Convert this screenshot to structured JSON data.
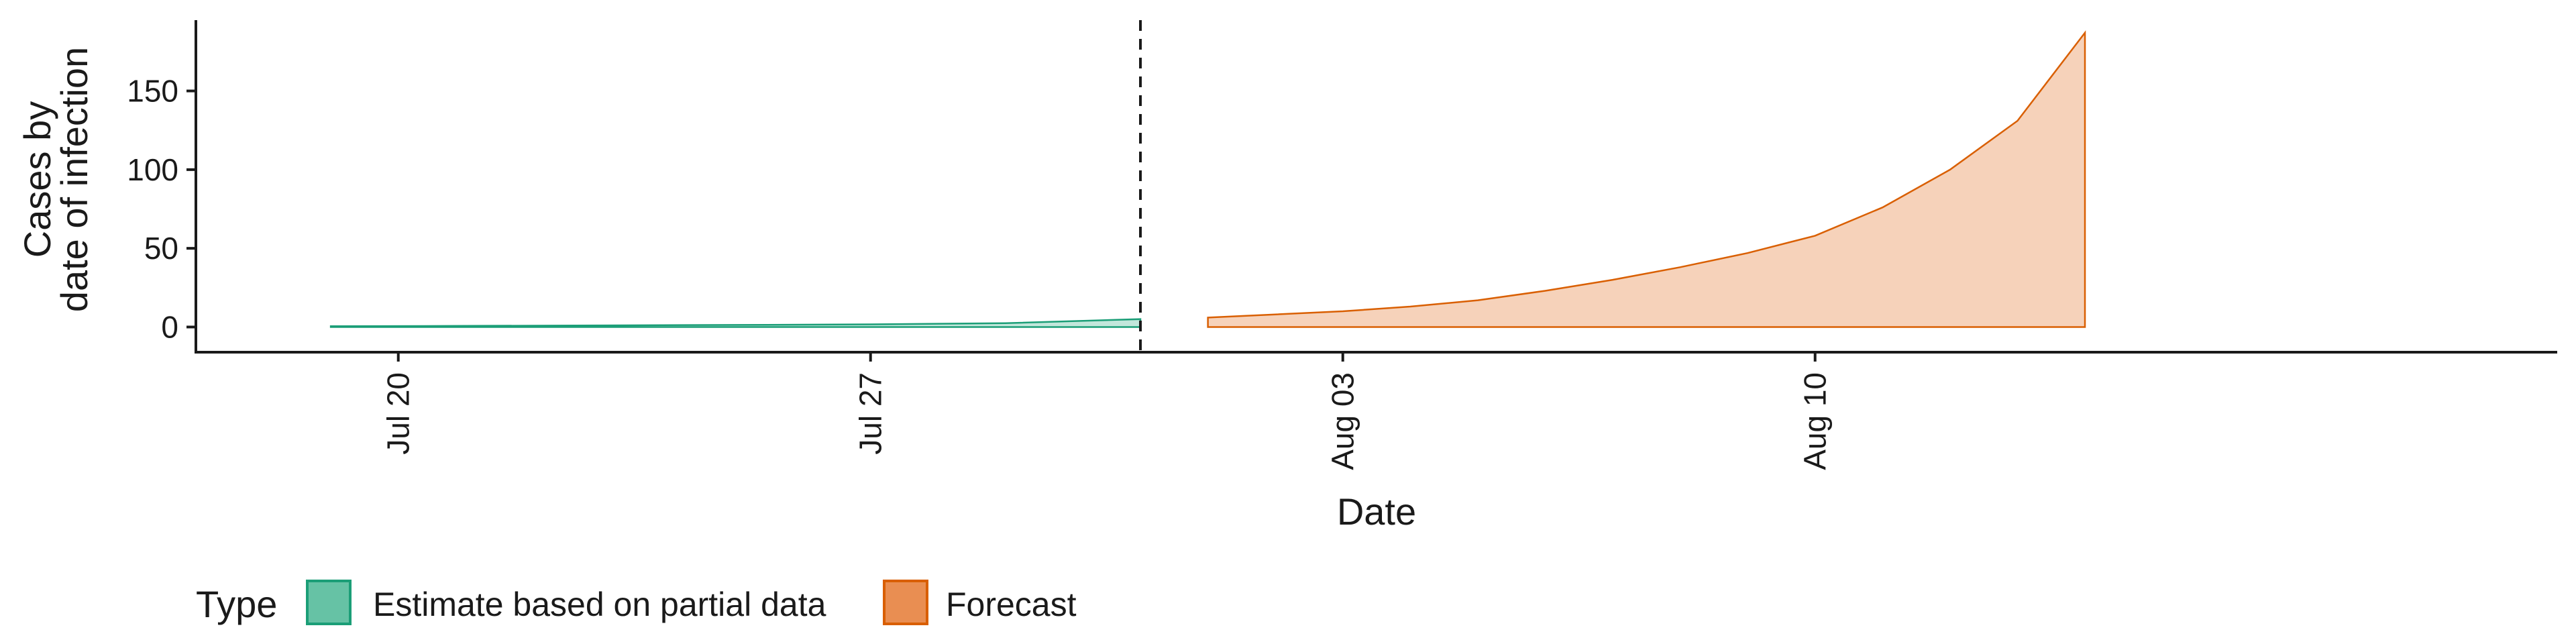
{
  "chart_data": {
    "type": "area",
    "xlabel": "Date",
    "ylabel_lines": [
      "Cases by",
      "date of infection"
    ],
    "xlim": [
      "2021-07-17",
      "2021-08-21"
    ],
    "ylim": [
      -16,
      195
    ],
    "x_ticks": [
      {
        "date": "2021-07-20",
        "label": "Jul 20"
      },
      {
        "date": "2021-07-27",
        "label": "Jul 27"
      },
      {
        "date": "2021-08-03",
        "label": "Aug 03"
      },
      {
        "date": "2021-08-10",
        "label": "Aug 10"
      }
    ],
    "y_ticks": [
      0,
      50,
      100,
      150
    ],
    "vline_date": "2021-07-31",
    "grid": false,
    "legend_position": "bottom-left",
    "legend_title": "Type",
    "series": [
      {
        "name": "Estimate based on partial data",
        "fill": "#66c2a5",
        "stroke": "#1b9e77",
        "points": [
          {
            "x": "2021-07-19",
            "lower": 0,
            "upper": 0.5
          },
          {
            "x": "2021-07-21",
            "lower": 0,
            "upper": 0.7
          },
          {
            "x": "2021-07-23",
            "lower": 0,
            "upper": 1.0
          },
          {
            "x": "2021-07-25",
            "lower": 0,
            "upper": 1.3
          },
          {
            "x": "2021-07-27",
            "lower": 0,
            "upper": 1.7
          },
          {
            "x": "2021-07-29",
            "lower": 0,
            "upper": 2.4
          },
          {
            "x": "2021-07-31",
            "lower": 0,
            "upper": 5
          }
        ]
      },
      {
        "name": "Forecast",
        "fill": "#e98e52",
        "stroke": "#d95f02",
        "points": [
          {
            "x": "2021-08-01",
            "lower": 0,
            "upper": 6
          },
          {
            "x": "2021-08-02",
            "lower": 0,
            "upper": 8
          },
          {
            "x": "2021-08-03",
            "lower": 0,
            "upper": 10
          },
          {
            "x": "2021-08-04",
            "lower": 0,
            "upper": 13
          },
          {
            "x": "2021-08-05",
            "lower": 0,
            "upper": 17
          },
          {
            "x": "2021-08-06",
            "lower": 0,
            "upper": 23
          },
          {
            "x": "2021-08-07",
            "lower": 0,
            "upper": 30
          },
          {
            "x": "2021-08-08",
            "lower": 0,
            "upper": 38
          },
          {
            "x": "2021-08-09",
            "lower": 0,
            "upper": 47
          },
          {
            "x": "2021-08-10",
            "lower": 0,
            "upper": 58
          },
          {
            "x": "2021-08-11",
            "lower": 0,
            "upper": 76
          },
          {
            "x": "2021-08-12",
            "lower": 0,
            "upper": 100
          },
          {
            "x": "2021-08-13",
            "lower": 0,
            "upper": 131
          },
          {
            "x": "2021-08-14",
            "lower": 0,
            "upper": 187
          }
        ]
      }
    ]
  }
}
